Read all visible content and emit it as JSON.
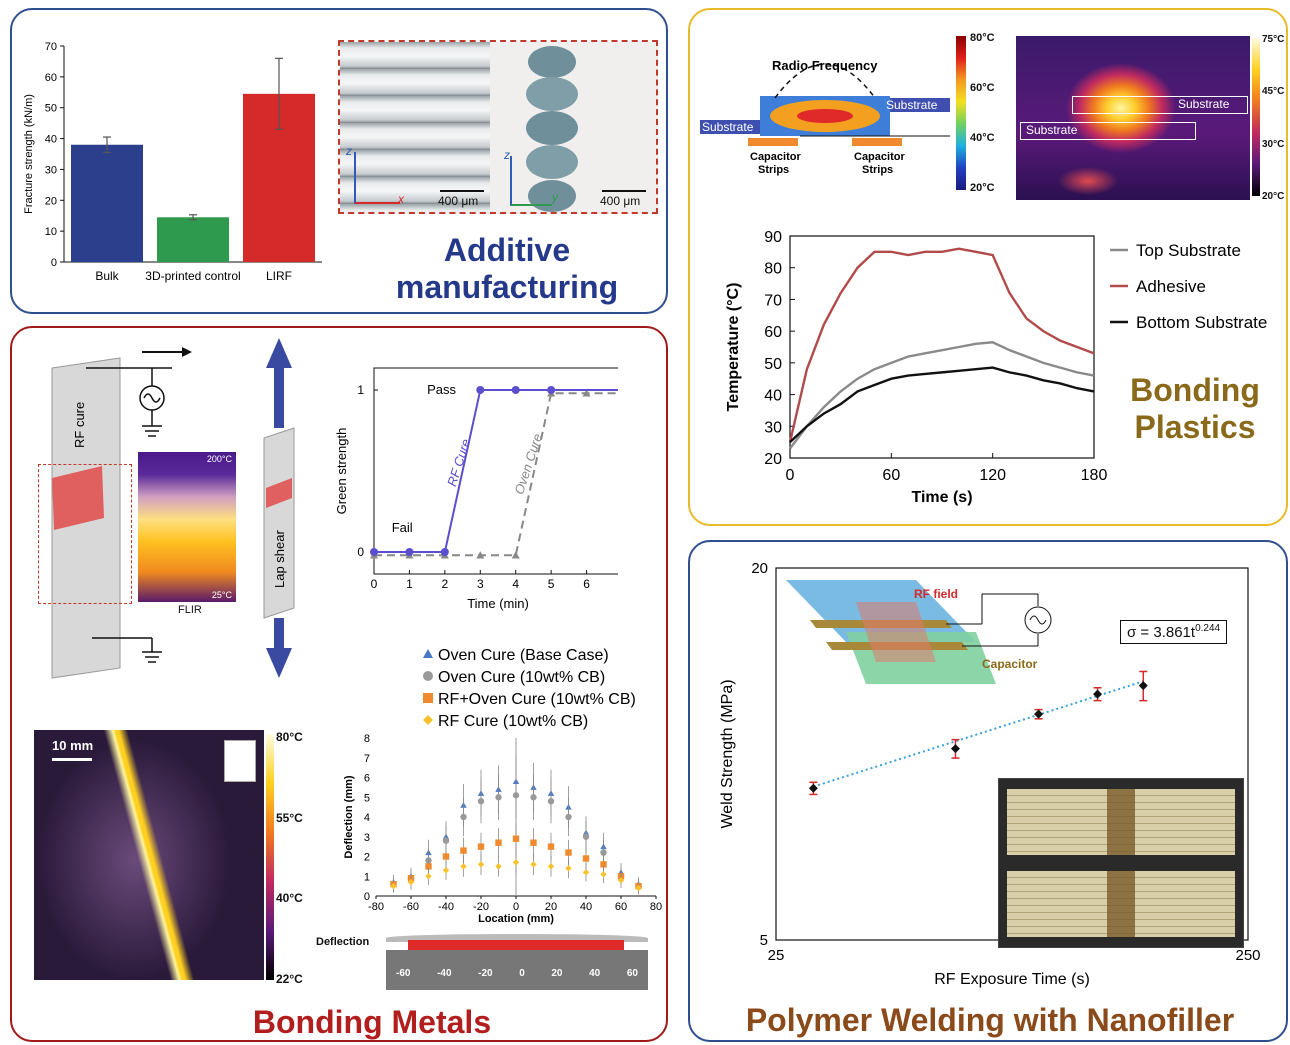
{
  "panels": {
    "additive": {
      "title_line1": "Additive",
      "title_line2": "manufacturing",
      "scale_bar_1": "400 μm",
      "scale_bar_2": "400 μm",
      "axis_z1": "z",
      "axis_x": "x",
      "axis_z2": "z",
      "axis_y": "y"
    },
    "bonding_plastics": {
      "title_line1": "Bonding",
      "title_line2": "Plastics",
      "diagram": {
        "radio_frequency": "Radio Frequency",
        "substrate_left": "Substrate",
        "substrate_right": "Substrate",
        "capacitor_left_1": "Capacitor",
        "capacitor_left_2": "Strips",
        "capacitor_right_1": "Capacitor",
        "capacitor_right_2": "Strips",
        "colorbar_ticks": [
          "80°C",
          "60°C",
          "40°C",
          "20°C"
        ],
        "thermal_substrate_1": "Substrate",
        "thermal_substrate_2": "Substrate",
        "thermal_ticks": [
          "75°C",
          "45°C",
          "30°C",
          "20°C"
        ]
      }
    },
    "bonding_metals": {
      "title": "Bonding Metals",
      "rf_cure": "RF cure",
      "lap_shear": "Lap shear",
      "flir": "FLIR",
      "flir_hi": "200°C",
      "flir_lo": "25°C",
      "scale_10mm": "10 mm",
      "thermal_ticks": [
        "80°C",
        "55°C",
        "40°C",
        "22°C"
      ],
      "deflection_label": "Deflection",
      "bar_ticks": [
        "-60",
        "-40",
        "-20",
        "0",
        "20",
        "40",
        "60"
      ]
    },
    "polymer_welding": {
      "title": "Polymer Welding with Nanofiller",
      "rf_field": "RF field",
      "capacitor": "Capacitor",
      "equation": "σ = 3.861t",
      "equation_exp": "0.244"
    }
  },
  "colors": {
    "bulk": "#2b3f8c",
    "printed": "#2e9a4e",
    "lirf": "#d42a2a",
    "top_substrate": "#8a8a8a",
    "adhesive": "#b24a4a",
    "bottom_substrate": "#111111",
    "rf_cure": "#5b4fcf",
    "oven_cure": "#888888",
    "oven_base": "#4a78c8",
    "oven_cb": "#9a9a9a",
    "rfoven_cb": "#f08a2e",
    "rf_cb": "#f6c22e",
    "fit_line": "#3aa0d8",
    "welds": "#111111",
    "error": "#d42a2a"
  },
  "chart_data": [
    {
      "type": "bar",
      "categories": [
        "Bulk",
        "3D-printed control",
        "LIRF"
      ],
      "values": [
        38,
        14.5,
        54.5
      ],
      "errors": [
        2.5,
        0.8,
        11.5
      ],
      "ylabel": "Fracture strength (kN/m)",
      "ylim": [
        0,
        70
      ],
      "yticks": [
        "0",
        "10",
        "20",
        "30",
        "40",
        "50",
        "60",
        "70"
      ]
    },
    {
      "type": "line",
      "xlabel": "Time (s)",
      "ylabel": "Temperature (°C)",
      "xlim": [
        0,
        180
      ],
      "ylim": [
        20,
        90
      ],
      "xticks": [
        "0",
        "60",
        "120",
        "180"
      ],
      "yticks": [
        "20",
        "30",
        "40",
        "50",
        "60",
        "70",
        "80",
        "90"
      ],
      "legend_position": "right",
      "series": [
        {
          "name": "Top Substrate",
          "x": [
            0,
            10,
            20,
            30,
            40,
            50,
            60,
            70,
            80,
            90,
            100,
            110,
            120,
            130,
            140,
            150,
            160,
            170,
            180
          ],
          "values": [
            23,
            30,
            36,
            41,
            45,
            48,
            50,
            52,
            53,
            54,
            55,
            56,
            56.5,
            54,
            52,
            50,
            48.5,
            47,
            46
          ]
        },
        {
          "name": "Adhesive",
          "x": [
            0,
            10,
            20,
            30,
            40,
            50,
            60,
            70,
            80,
            90,
            100,
            110,
            120,
            130,
            140,
            150,
            160,
            170,
            180
          ],
          "values": [
            25,
            48,
            62,
            72,
            80,
            85,
            85,
            84,
            85,
            85,
            86,
            85,
            84,
            72,
            64,
            60,
            57,
            55,
            53
          ]
        },
        {
          "name": "Bottom Substrate",
          "x": [
            0,
            10,
            20,
            30,
            40,
            50,
            60,
            70,
            80,
            90,
            100,
            110,
            120,
            130,
            140,
            150,
            160,
            170,
            180
          ],
          "values": [
            25,
            30,
            34,
            37,
            41,
            43,
            45,
            46,
            46.5,
            47,
            47.5,
            48,
            48.5,
            47,
            46,
            44.5,
            43.5,
            42,
            41
          ]
        }
      ]
    },
    {
      "type": "line",
      "xlabel": "Time (min)",
      "ylabel": "Green strength",
      "xlim": [
        0,
        7
      ],
      "ylim": [
        0,
        1
      ],
      "xticks": [
        "0",
        "1",
        "2",
        "3",
        "4",
        "5",
        "6",
        "7"
      ],
      "yticks": [
        "0",
        "1"
      ],
      "annotations": [
        "Pass",
        "Fail",
        "RF Cure",
        "Oven Cure"
      ],
      "series": [
        {
          "name": "RF Cure",
          "x": [
            0,
            1,
            2,
            3,
            4,
            5,
            7
          ],
          "values": [
            0,
            0,
            0,
            1,
            1,
            1,
            1
          ]
        },
        {
          "name": "Oven Cure",
          "x": [
            0,
            1,
            2,
            3,
            4,
            5,
            6,
            7
          ],
          "values": [
            -0.02,
            -0.02,
            -0.02,
            -0.02,
            -0.02,
            0.98,
            0.98,
            0.98
          ]
        }
      ]
    },
    {
      "type": "scatter",
      "xlabel": "Location (mm)",
      "ylabel": "Deflection (mm)",
      "xlim": [
        -80,
        80
      ],
      "ylim": [
        0,
        8
      ],
      "xticks": [
        "-80",
        "-60",
        "-40",
        "-20",
        "0",
        "20",
        "40",
        "60",
        "80"
      ],
      "yticks": [
        "0",
        "1",
        "2",
        "3",
        "4",
        "5",
        "6",
        "7",
        "8"
      ],
      "legend_position": "top",
      "x": [
        -70,
        -60,
        -50,
        -40,
        -30,
        -20,
        -10,
        0,
        10,
        20,
        30,
        40,
        50,
        60,
        70
      ],
      "series": [
        {
          "name": "Oven Cure (Base Case)",
          "values": [
            0.7,
            1,
            2.2,
            3,
            4.6,
            5.2,
            5.4,
            5.8,
            5.5,
            5.2,
            4.5,
            3.2,
            2.5,
            1.2,
            0.6
          ]
        },
        {
          "name": "Oven Cure (10wt% CB)",
          "values": [
            0.6,
            0.9,
            1.8,
            2.8,
            4,
            4.8,
            5,
            5.1,
            5,
            4.8,
            4,
            3,
            2.2,
            1,
            0.5
          ]
        },
        {
          "name": "RF+Oven Cure (10wt% CB)",
          "values": [
            0.6,
            0.9,
            1.5,
            2,
            2.3,
            2.5,
            2.7,
            2.9,
            2.7,
            2.5,
            2.2,
            1.9,
            1.6,
            1,
            0.5
          ]
        },
        {
          "name": "RF Cure (10wt% CB)",
          "values": [
            0.5,
            0.7,
            1,
            1.3,
            1.5,
            1.6,
            1.5,
            1.7,
            1.6,
            1.5,
            1.4,
            1.2,
            1.1,
            0.8,
            0.4
          ]
        }
      ]
    },
    {
      "type": "scatter",
      "xlabel": "RF Exposure Time (s)",
      "ylabel": "Weld Strength (MPa)",
      "xscale": "log",
      "yscale": "log",
      "xlim": [
        25,
        250
      ],
      "ylim": [
        5,
        20
      ],
      "xticks": [
        "25",
        "250"
      ],
      "yticks": [
        "5",
        "20"
      ],
      "x": [
        30,
        60,
        90,
        120,
        150
      ],
      "values": [
        8.8,
        10.2,
        11.6,
        12.5,
        12.9
      ],
      "errors": [
        0.2,
        0.35,
        0.2,
        0.3,
        0.7
      ]
    }
  ]
}
